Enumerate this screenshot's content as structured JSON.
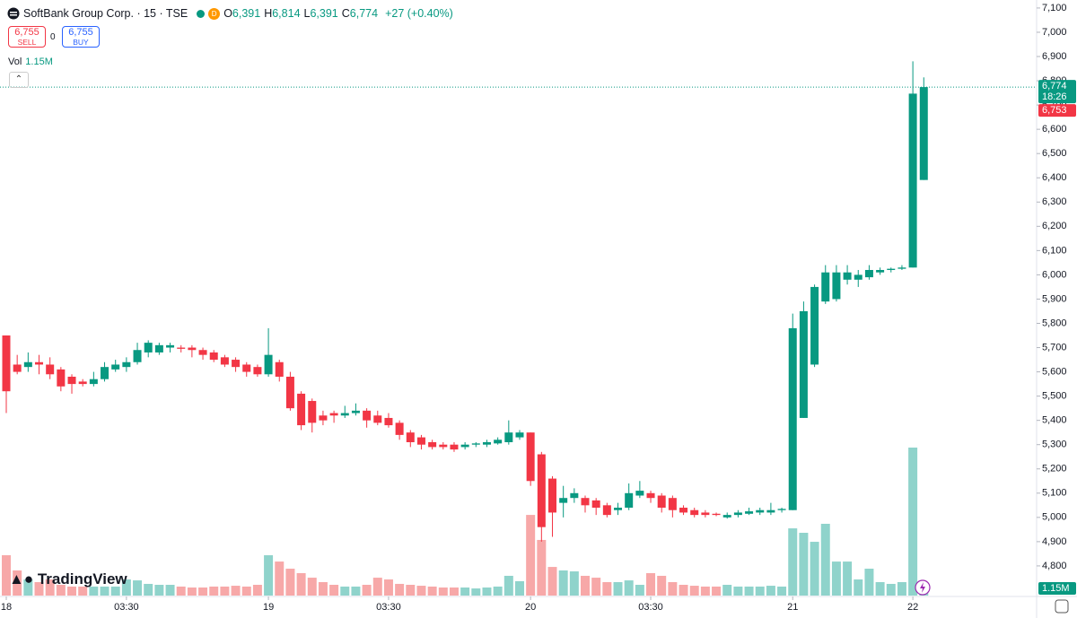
{
  "chart_data": {
    "type": "candlestick",
    "title": "SoftBank Group Corp. · 15 · TSE",
    "market_badge": "D",
    "ohlc_legend": [
      {
        "key": "O",
        "value": "6,391"
      },
      {
        "key": "H",
        "value": "6,814"
      },
      {
        "key": "L",
        "value": "6,391"
      },
      {
        "key": "C",
        "value": "6,774"
      }
    ],
    "change": "+27 (+0.40%)",
    "sell": {
      "price": "6,755",
      "label": "SELL"
    },
    "spread": "0",
    "buy": {
      "price": "6,755",
      "label": "BUY"
    },
    "volume_label": "Vol",
    "volume_value": "1.15M",
    "brand": "TradingView",
    "up_color": "#089981",
    "down_color": "#f23645",
    "volume_up_color": "#8fd3cb",
    "volume_down_color": "#f7a8a8",
    "open": [
      5750,
      5630,
      5620,
      5640,
      5630,
      5610,
      5580,
      5560,
      5550,
      5570,
      5610,
      5620,
      5640,
      5680,
      5680,
      5700,
      5700,
      5700,
      5690,
      5680,
      5660,
      5650,
      5630,
      5620,
      5590,
      5640,
      5580,
      5510,
      5480,
      5420,
      5430,
      5420,
      5430,
      5440,
      5420,
      5410,
      5390,
      5350,
      5330,
      5310,
      5300,
      5300,
      5290,
      5300,
      5300,
      5305,
      5310,
      5330,
      5350,
      5260,
      5160,
      5060,
      5080,
      5080,
      5070,
      5050,
      5030,
      5040,
      5090,
      5100,
      5090,
      5080,
      5040,
      5030,
      5020,
      5015,
      5000,
      5010,
      5015,
      5020,
      5020,
      5030,
      5030,
      5410,
      5630,
      5890,
      5900,
      5980,
      5980,
      5990,
      6010,
      6020,
      6025,
      6030,
      6391
    ],
    "high": [
      5750,
      5670,
      5680,
      5670,
      5660,
      5620,
      5590,
      5570,
      5600,
      5640,
      5650,
      5660,
      5720,
      5730,
      5720,
      5720,
      5710,
      5710,
      5700,
      5690,
      5670,
      5660,
      5640,
      5630,
      5780,
      5650,
      5600,
      5520,
      5490,
      5440,
      5440,
      5460,
      5470,
      5450,
      5440,
      5430,
      5400,
      5360,
      5340,
      5320,
      5310,
      5310,
      5310,
      5310,
      5320,
      5330,
      5400,
      5360,
      5350,
      5270,
      5170,
      5130,
      5120,
      5090,
      5080,
      5060,
      5060,
      5140,
      5150,
      5110,
      5100,
      5090,
      5050,
      5040,
      5030,
      5020,
      5020,
      5030,
      5040,
      5040,
      5060,
      5040,
      5840,
      5890,
      5960,
      6040,
      6040,
      6040,
      6020,
      6040,
      6030,
      6030,
      6040,
      6880,
      6814
    ],
    "low": [
      5430,
      5590,
      5600,
      5590,
      5570,
      5520,
      5510,
      5540,
      5540,
      5560,
      5600,
      5600,
      5630,
      5660,
      5670,
      5680,
      5680,
      5660,
      5650,
      5640,
      5620,
      5600,
      5580,
      5580,
      5580,
      5560,
      5440,
      5360,
      5350,
      5380,
      5390,
      5410,
      5420,
      5370,
      5380,
      5370,
      5320,
      5290,
      5280,
      5280,
      5280,
      5270,
      5280,
      5290,
      5290,
      5300,
      5300,
      5320,
      5130,
      4900,
      4920,
      5000,
      5060,
      5020,
      5010,
      5000,
      5010,
      5030,
      5080,
      5060,
      5020,
      5000,
      5010,
      5000,
      5000,
      5005,
      4995,
      5000,
      5010,
      5010,
      5010,
      5020,
      5030,
      5410,
      5620,
      5880,
      5890,
      5960,
      5950,
      5980,
      6000,
      6010,
      6020,
      6030,
      6391
    ],
    "close": [
      5520,
      5600,
      5640,
      5630,
      5590,
      5540,
      5550,
      5550,
      5570,
      5620,
      5630,
      5640,
      5690,
      5720,
      5710,
      5710,
      5695,
      5690,
      5670,
      5650,
      5630,
      5620,
      5600,
      5590,
      5670,
      5580,
      5450,
      5380,
      5390,
      5400,
      5420,
      5430,
      5440,
      5400,
      5390,
      5380,
      5340,
      5310,
      5300,
      5290,
      5290,
      5280,
      5300,
      5305,
      5310,
      5320,
      5350,
      5350,
      5150,
      4960,
      5020,
      5080,
      5100,
      5050,
      5040,
      5010,
      5040,
      5100,
      5110,
      5080,
      5040,
      5030,
      5020,
      5010,
      5010,
      5010,
      5010,
      5020,
      5025,
      5030,
      5030,
      5035,
      5780,
      5850,
      5950,
      6010,
      6010,
      6010,
      6000,
      6020,
      6020,
      6025,
      6030,
      6747,
      6774
    ],
    "volume": [
      3.45,
      2.15,
      1.38,
      1.15,
      1.38,
      0.92,
      0.77,
      0.77,
      0.77,
      0.77,
      0.77,
      1.38,
      1.3,
      1.0,
      0.92,
      0.92,
      0.77,
      0.69,
      0.69,
      0.77,
      0.77,
      0.84,
      0.77,
      0.92,
      3.45,
      2.91,
      2.3,
      1.92,
      1.53,
      1.15,
      0.92,
      0.77,
      0.77,
      0.92,
      1.53,
      1.38,
      1.0,
      0.92,
      0.84,
      0.77,
      0.69,
      0.69,
      0.69,
      0.61,
      0.69,
      0.77,
      1.69,
      1.23,
      6.9,
      4.76,
      2.45,
      2.15,
      2.07,
      1.69,
      1.53,
      1.15,
      1.15,
      1.3,
      0.92,
      1.92,
      1.69,
      1.15,
      0.92,
      0.84,
      0.77,
      0.77,
      0.92,
      0.77,
      0.77,
      0.77,
      0.84,
      0.77,
      5.75,
      5.37,
      4.6,
      6.14,
      2.91,
      2.91,
      1.38,
      2.3,
      1.15,
      1.0,
      1.15,
      12.66,
      1.15
    ],
    "xticks": [
      {
        "value": 0,
        "label": "18"
      },
      {
        "value": 11,
        "label": "03:30"
      },
      {
        "value": 24,
        "label": "19"
      },
      {
        "value": 35,
        "label": "03:30"
      },
      {
        "value": 48,
        "label": "20"
      },
      {
        "value": 59,
        "label": "03:30"
      },
      {
        "value": 72,
        "label": "21"
      },
      {
        "value": 83,
        "label": "22"
      }
    ],
    "ylim": [
      4674,
      7133
    ],
    "yticks": [
      {
        "value": 4800,
        "label": "4,800"
      },
      {
        "value": 4900,
        "label": "4,900"
      },
      {
        "value": 5000,
        "label": "5,000"
      },
      {
        "value": 5100,
        "label": "5,100"
      },
      {
        "value": 5200,
        "label": "5,200"
      },
      {
        "value": 5300,
        "label": "5,300"
      },
      {
        "value": 5400,
        "label": "5,400"
      },
      {
        "value": 5500,
        "label": "5,500"
      },
      {
        "value": 5600,
        "label": "5,600"
      },
      {
        "value": 5700,
        "label": "5,700"
      },
      {
        "value": 5800,
        "label": "5,800"
      },
      {
        "value": 5900,
        "label": "5,900"
      },
      {
        "value": 6000,
        "label": "6,000"
      },
      {
        "value": 6100,
        "label": "6,100"
      },
      {
        "value": 6200,
        "label": "6,200"
      },
      {
        "value": 6300,
        "label": "6,300"
      },
      {
        "value": 6400,
        "label": "6,400"
      },
      {
        "value": 6500,
        "label": "6,500"
      },
      {
        "value": 6600,
        "label": "6,600"
      },
      {
        "value": 6700,
        "label": "6,700"
      },
      {
        "value": 6800,
        "label": "6,800"
      },
      {
        "value": 6900,
        "label": "6,900"
      },
      {
        "value": 7000,
        "label": "7,000"
      },
      {
        "value": 7100,
        "label": "7,100"
      }
    ],
    "last_price": {
      "value": 6774,
      "label": "6,774"
    },
    "countdown": "18:26",
    "bid_price": {
      "value": 6753,
      "label": "6,753"
    }
  }
}
